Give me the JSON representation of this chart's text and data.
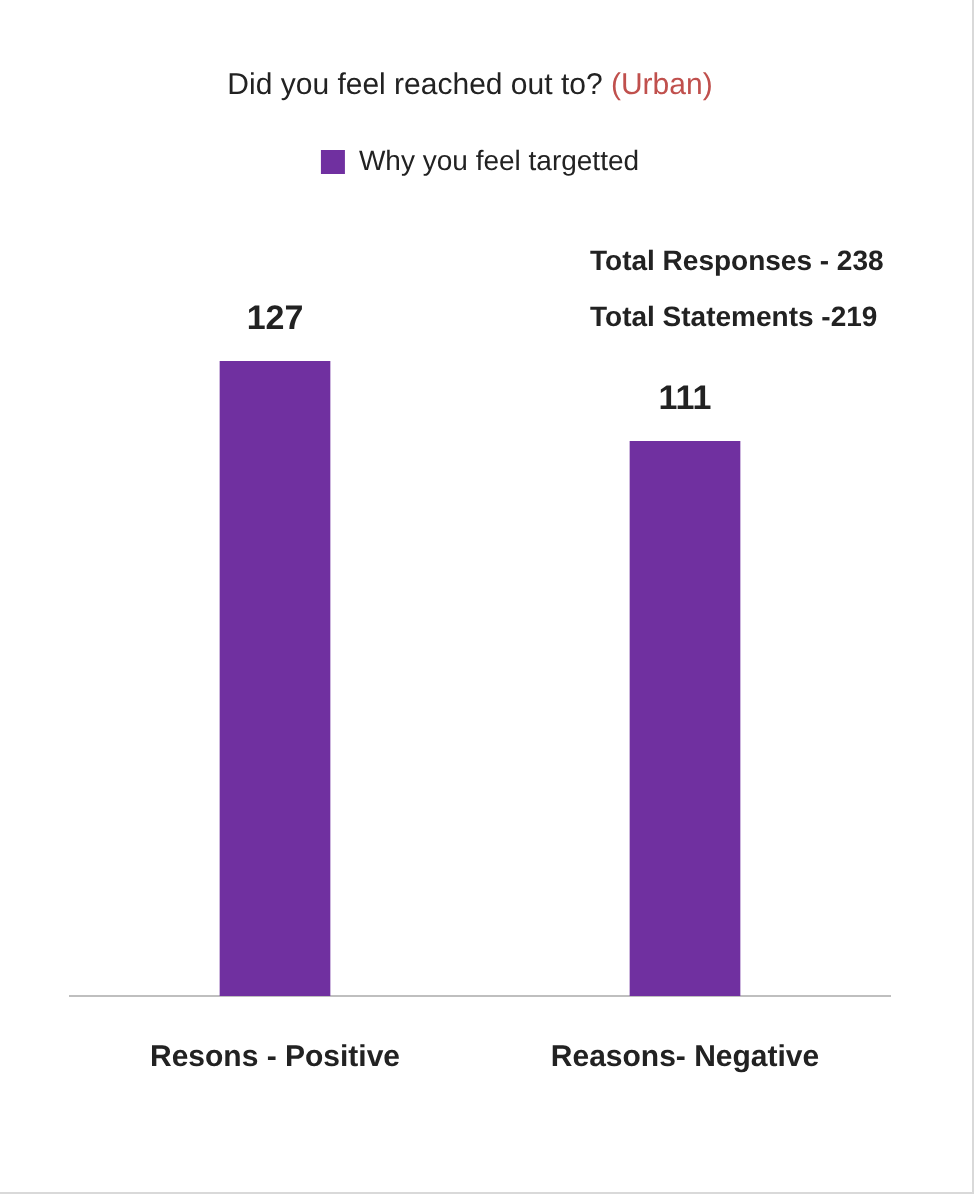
{
  "chart_data": {
    "type": "bar",
    "title": "Did you feel reached out to?",
    "subtitle": "(Urban)",
    "categories": [
      "Resons - Positive",
      "Reasons- Negative"
    ],
    "series": [
      {
        "name": "Why you feel targetted",
        "color": "#7030a0",
        "values": [
          127,
          111
        ]
      }
    ],
    "data_labels": true,
    "legend": "top",
    "grid": false,
    "annotations": [
      "Total Responses - 238",
      "Total Statements -219"
    ]
  }
}
